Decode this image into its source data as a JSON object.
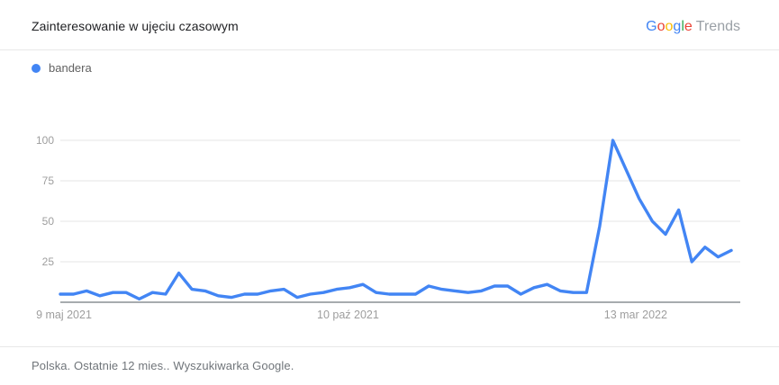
{
  "header": {
    "title": "Zainteresowanie w ujęciu czasowym"
  },
  "logo": {
    "letters": [
      {
        "ch": "G",
        "color": "#4285F4"
      },
      {
        "ch": "o",
        "color": "#EA4335"
      },
      {
        "ch": "o",
        "color": "#FBBC05"
      },
      {
        "ch": "g",
        "color": "#4285F4"
      },
      {
        "ch": "l",
        "color": "#34A853"
      },
      {
        "ch": "e",
        "color": "#EA4335"
      }
    ],
    "suffix": "Trends",
    "suffix_color": "#9AA0A6"
  },
  "legend": {
    "term": "bandera",
    "dot_color": "#4285F4"
  },
  "chart_data": {
    "type": "line",
    "title": "Zainteresowanie w ujęciu czasowym",
    "xlabel": "",
    "ylabel": "",
    "ylim": [
      0,
      100
    ],
    "y_ticks": [
      25,
      50,
      75,
      100
    ],
    "grid": true,
    "legend_position": "top-left",
    "line_color": "#4285F4",
    "grid_color": "#e6e6e6",
    "axis_color": "#8a8f94",
    "tick_label_color": "#9e9e9e",
    "x_tick_labels": [
      "9 maj 2021",
      "10 paź 2021",
      "13 mar 2022"
    ],
    "x_tick_week_indices": [
      0,
      22,
      44
    ],
    "weeks_total": 52,
    "x_unit": "week",
    "series": [
      {
        "name": "bandera",
        "color": "#4285F4",
        "values": [
          5,
          5,
          7,
          4,
          6,
          6,
          2,
          6,
          5,
          18,
          8,
          7,
          4,
          3,
          5,
          5,
          7,
          8,
          3,
          5,
          6,
          8,
          9,
          11,
          6,
          5,
          5,
          5,
          10,
          8,
          7,
          6,
          7,
          10,
          10,
          5,
          9,
          11,
          7,
          6,
          6,
          47,
          100,
          82,
          64,
          50,
          42,
          57,
          25,
          34,
          28,
          32
        ]
      }
    ]
  },
  "footer": {
    "text": "Polska. Ostatnie 12 mies.. Wyszukiwarka Google."
  }
}
